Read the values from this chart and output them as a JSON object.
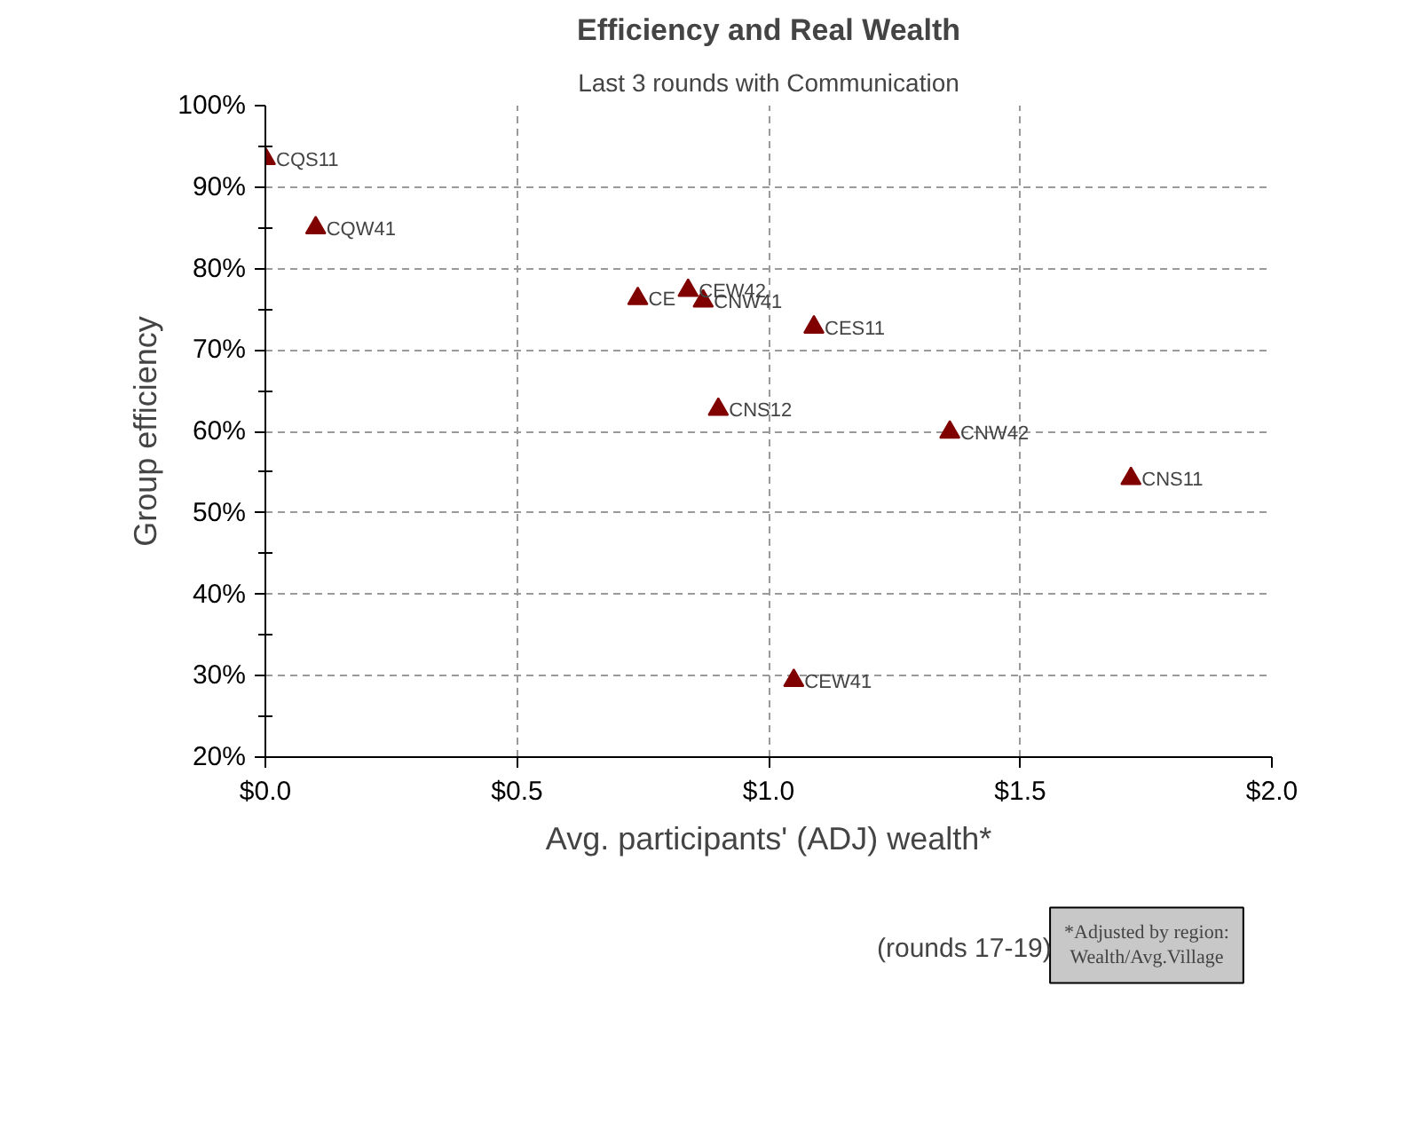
{
  "chart_data": {
    "type": "scatter",
    "title": "Efficiency and Real Wealth",
    "subtitle": "Last 3 rounds with Communication",
    "xlabel": "Avg. participants' (ADJ) wealth*",
    "ylabel": "Group efficiency",
    "x": [
      0.0,
      0.1,
      0.74,
      0.84,
      0.87,
      1.09,
      0.9,
      1.36,
      1.72,
      1.05
    ],
    "series": [
      {
        "name": "(rounds 17-19)",
        "color": "#800000",
        "values": [
          93.5,
          85,
          76.3,
          77.3,
          76,
          72.8,
          62.7,
          59.9,
          54.2,
          29.4
        ]
      }
    ],
    "annotations": [
      {
        "text": "CQS11",
        "x": 0.0,
        "y": 93.5
      },
      {
        "text": "CQW41",
        "x": 0.1,
        "y": 85
      },
      {
        "text": "CE",
        "x": 0.74,
        "y": 76.3
      },
      {
        "text": "CEW42",
        "x": 0.84,
        "y": 77.3
      },
      {
        "text": "CNW41",
        "x": 0.87,
        "y": 76
      },
      {
        "text": "CES11",
        "x": 1.09,
        "y": 72.8
      },
      {
        "text": "CNS12",
        "x": 0.9,
        "y": 62.7
      },
      {
        "text": "CNW42",
        "x": 1.36,
        "y": 59.9
      },
      {
        "text": "CNS11",
        "x": 1.72,
        "y": 54.2
      },
      {
        "text": "CEW41",
        "x": 1.05,
        "y": 29.4
      },
      "*Adjusted by region: Wealth/Avg.Village"
    ],
    "xlim": [
      0,
      2
    ],
    "ylim": [
      20,
      100
    ],
    "xticks": [
      {
        "value": 0,
        "label": "$0.0"
      },
      {
        "value": 0.5,
        "label": "$0.5"
      },
      {
        "value": 1,
        "label": "$1.0"
      },
      {
        "value": 1.5,
        "label": "$1.5"
      },
      {
        "value": 2,
        "label": "$2.0"
      }
    ],
    "yticks": [
      {
        "value": 20,
        "label": "20%"
      },
      {
        "value": 30,
        "label": "30%"
      },
      {
        "value": 40,
        "label": "40%"
      },
      {
        "value": 50,
        "label": "50%"
      },
      {
        "value": 60,
        "label": "60%"
      },
      {
        "value": 70,
        "label": "70%"
      },
      {
        "value": 80,
        "label": "80%"
      },
      {
        "value": 90,
        "label": "90%"
      },
      {
        "value": 100,
        "label": "100%"
      }
    ],
    "grid": true,
    "legend": "bottom",
    "marker": "triangle"
  }
}
